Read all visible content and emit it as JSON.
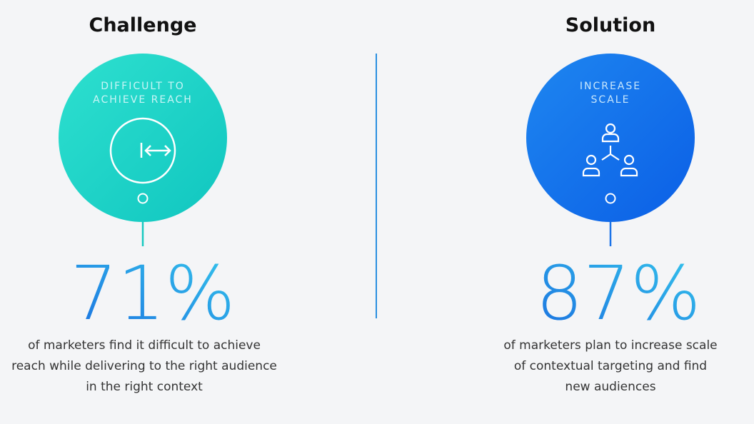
{
  "panels": [
    {
      "heading": "Challenge",
      "circle_label": [
        "DIFFICULT TO",
        "ACHIEVE REACH"
      ],
      "stat": "71%",
      "description": [
        "of marketers find it difficult to achieve",
        "reach while delivering to the right audience",
        "in the right context"
      ]
    },
    {
      "heading": "Solution",
      "circle_label": [
        "INCREASE",
        "SCALE"
      ],
      "stat": "87%",
      "description": [
        "of marketers plan to increase scale",
        "of contextual targeting and find",
        "new audiences"
      ]
    }
  ]
}
